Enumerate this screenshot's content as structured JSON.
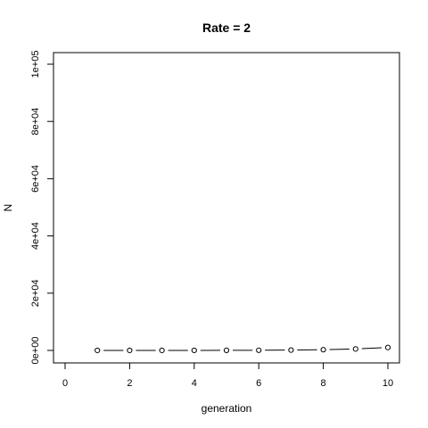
{
  "chart_data": {
    "type": "line",
    "title": "Rate = 2",
    "xlabel": "generation",
    "ylabel": "N",
    "xlim": [
      0,
      10
    ],
    "ylim": [
      0,
      100000
    ],
    "x_ticks": [
      0,
      2,
      4,
      6,
      8,
      10
    ],
    "x_tick_labels": [
      "0",
      "2",
      "4",
      "6",
      "8",
      "10"
    ],
    "y_ticks": [
      0,
      20000,
      40000,
      60000,
      80000,
      100000
    ],
    "y_tick_labels": [
      "0e+00",
      "2e+04",
      "4e+04",
      "6e+04",
      "8e+04",
      "1e+05"
    ],
    "grid": false,
    "legend": "none",
    "marker": "open-circle",
    "series": [
      {
        "x": [
          1,
          2,
          3,
          4,
          5,
          6,
          7,
          8,
          9,
          10
        ],
        "y": [
          2,
          4,
          8,
          16,
          32,
          64,
          128,
          256,
          512,
          1024
        ]
      }
    ]
  }
}
